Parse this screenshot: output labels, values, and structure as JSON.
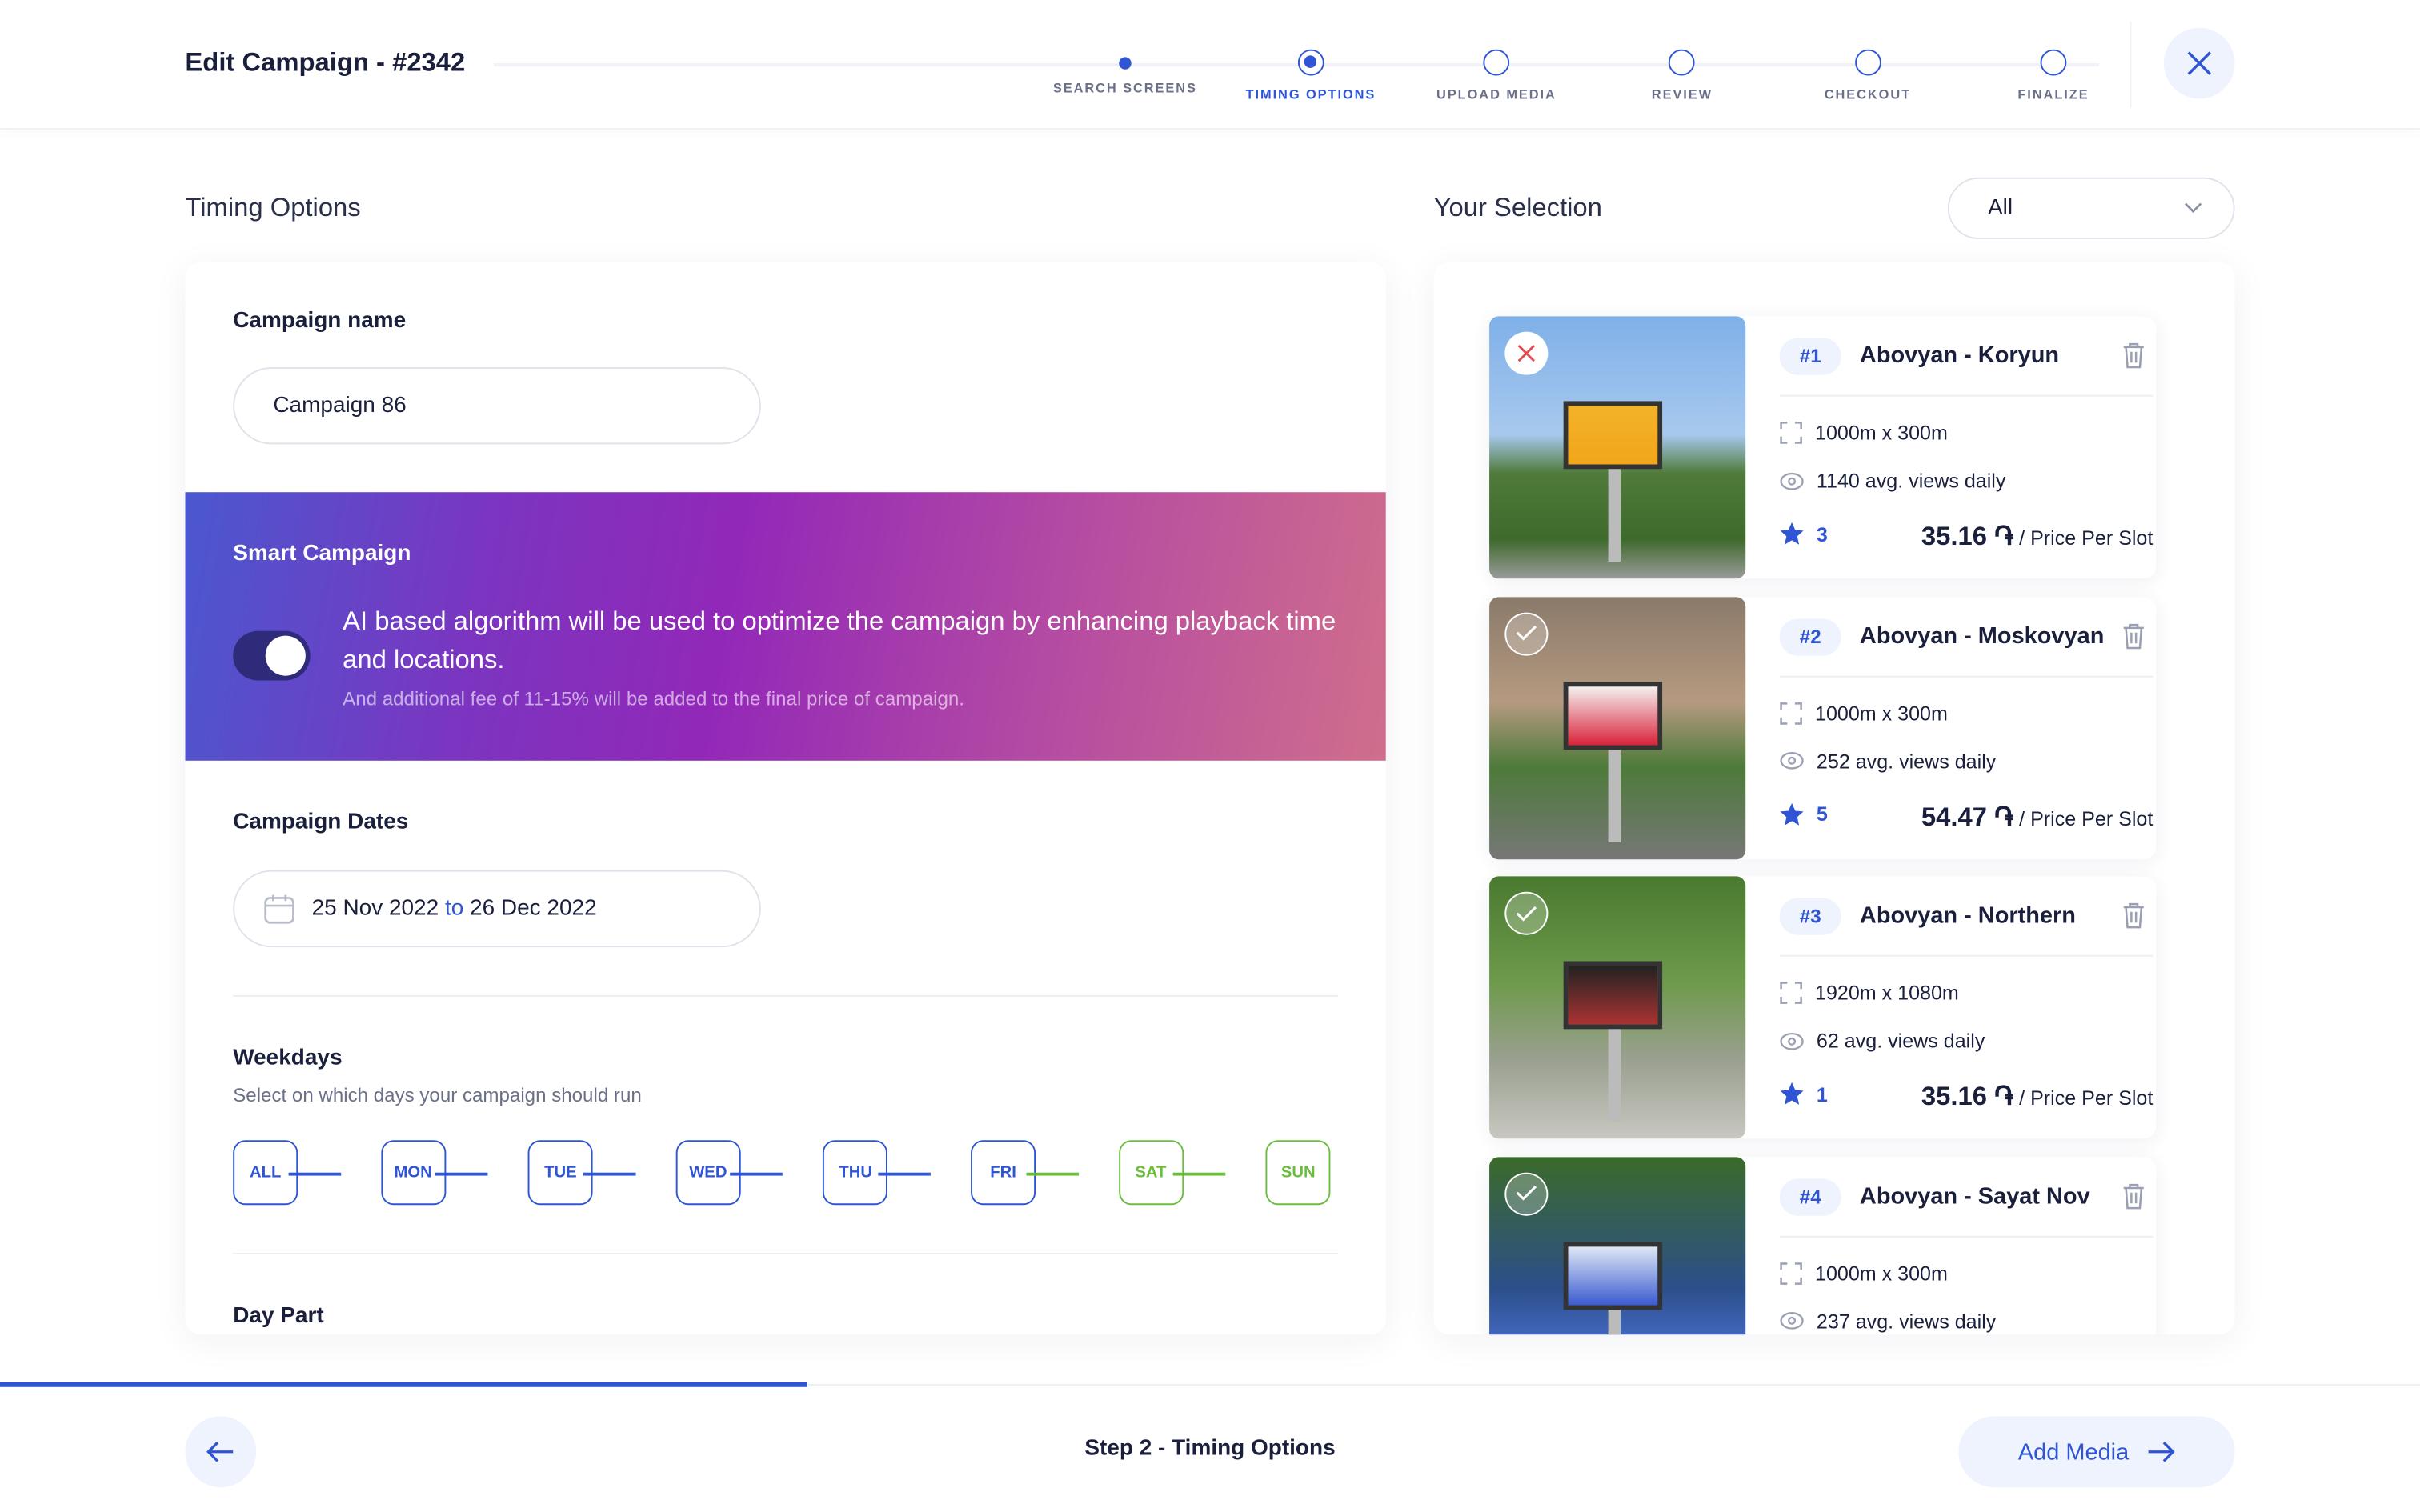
{
  "header": {
    "title": "Edit Campaign - #2342",
    "steps": [
      {
        "label": "SEARCH SCREENS",
        "state": "done"
      },
      {
        "label": "TIMING OPTIONS",
        "state": "current"
      },
      {
        "label": "UPLOAD MEDIA",
        "state": "todo"
      },
      {
        "label": "REVIEW",
        "state": "todo"
      },
      {
        "label": "CHECKOUT",
        "state": "todo"
      },
      {
        "label": "FINALIZE",
        "state": "todo"
      }
    ]
  },
  "timing": {
    "heading": "Timing Options",
    "campaign_name_label": "Campaign name",
    "campaign_name_value": "Campaign 86",
    "smart": {
      "title": "Smart Campaign",
      "enabled": true,
      "description": "AI based algorithm will be used to optimize the campaign by enhancing playback time and locations.",
      "note": "And additional fee of 11-15% will be added to the final price of campaign."
    },
    "dates_label": "Campaign Dates",
    "date_from": "25 Nov 2022",
    "date_sep": "to",
    "date_to": "26 Dec 2022",
    "weekdays_label": "Weekdays",
    "weekdays_hint": "Select on which days your campaign should run",
    "days": [
      "ALL",
      "MON",
      "TUE",
      "WED",
      "THU",
      "FRI",
      "SAT",
      "SUN"
    ],
    "daypart_label": "Day Part"
  },
  "selection": {
    "heading": "Your Selection",
    "filter_value": "All",
    "items": [
      {
        "num": "#1",
        "name": "Abovyan - Koryun",
        "size": "1000m x 300m",
        "views": "1140 avg. views daily",
        "rating": "3",
        "price": "35.16 ֏",
        "price_suffix": "/ Price Per Slot",
        "status": "rejected"
      },
      {
        "num": "#2",
        "name": "Abovyan - Moskovyan",
        "size": "1000m x 300m",
        "views": "252 avg. views daily",
        "rating": "5",
        "price": "54.47 ֏",
        "price_suffix": "/ Price Per Slot",
        "status": "approved"
      },
      {
        "num": "#3",
        "name": "Abovyan - Northern",
        "size": "1920m x 1080m",
        "views": "62 avg. views daily",
        "rating": "1",
        "price": "35.16 ֏",
        "price_suffix": "/ Price Per Slot",
        "status": "approved"
      },
      {
        "num": "#4",
        "name": "Abovyan - Sayat Nov",
        "size": "1000m x 300m",
        "views": "237 avg. views daily",
        "rating": "",
        "price": "",
        "price_suffix": "",
        "status": "approved"
      }
    ]
  },
  "footer": {
    "step_label": "Step 2 - Timing Options",
    "next_label": "Add Media",
    "progress_percent": 33
  },
  "colors": {
    "accent": "#2f55d4",
    "weekend": "#6cbd3e",
    "reject": "#e5484d"
  }
}
